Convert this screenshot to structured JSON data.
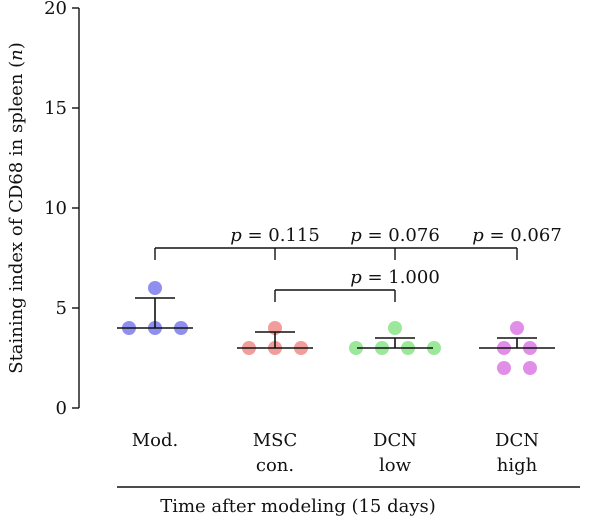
{
  "chart_data": {
    "type": "scatter",
    "ylabel_pre": "Staining index of CD68 in spleen (",
    "ylabel_var": "n",
    "ylabel_post": ")",
    "xlabel": "Time after modeling (15 days)",
    "ylim": [
      0,
      20
    ],
    "yticks": [
      "0",
      "5",
      "10",
      "15",
      "20"
    ],
    "grid": false,
    "groups": [
      {
        "label_lines": [
          "Mod."
        ],
        "color": "#8f8ff0",
        "points": [
          4,
          4,
          4,
          6
        ],
        "mean": 4,
        "sd_top": 5.5
      },
      {
        "label_lines": [
          "MSC",
          "con."
        ],
        "color": "#f29c9c",
        "points": [
          3,
          3,
          3,
          4
        ],
        "mean": 3,
        "sd_top": 3.8
      },
      {
        "label_lines": [
          "DCN",
          "low"
        ],
        "color": "#9be89b",
        "points": [
          3,
          3,
          3,
          3,
          4
        ],
        "mean": 3,
        "sd_top": 3.5
      },
      {
        "label_lines": [
          "DCN",
          "high"
        ],
        "color": "#e18ee8",
        "points": [
          2,
          2,
          3,
          3,
          4
        ],
        "mean": 3,
        "sd_top": 3.5
      }
    ],
    "comparisons": [
      {
        "from": 0,
        "to": 3,
        "level": 8,
        "labels": [
          {
            "at": 1,
            "p": "p",
            "text": " = 0.115"
          },
          {
            "at": 2,
            "p": "p",
            "text": " = 0.076"
          },
          {
            "at": 3,
            "p": "p",
            "text": " = 0.067"
          }
        ]
      },
      {
        "from": 1,
        "to": 2,
        "level": 5.9,
        "labels": [
          {
            "at": 2,
            "p": "p",
            "text": " = 1.000"
          }
        ]
      }
    ]
  }
}
